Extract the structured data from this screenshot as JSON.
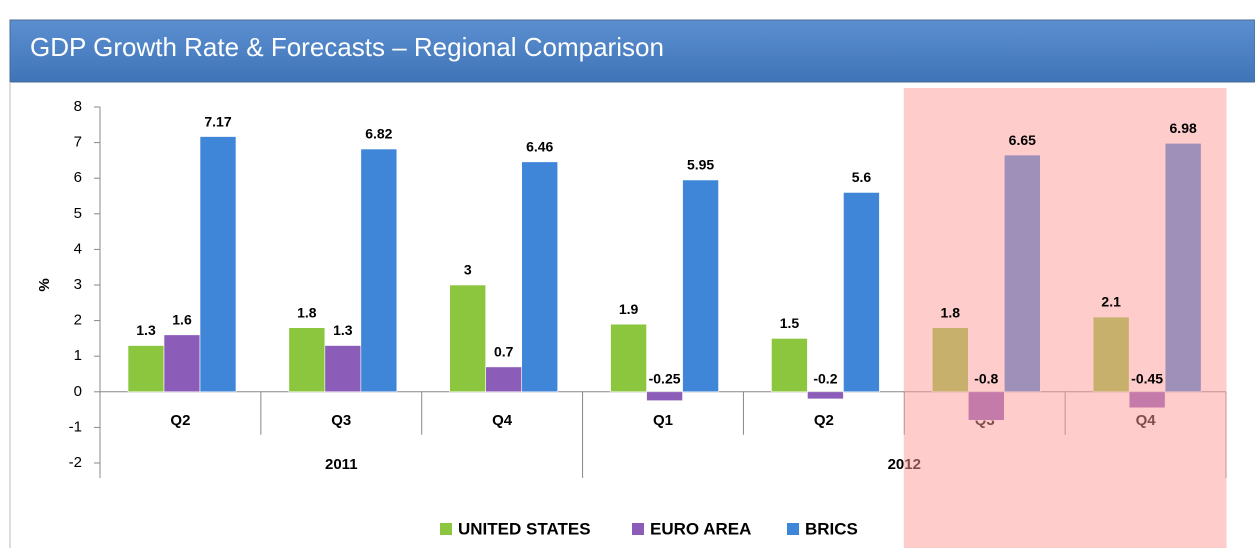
{
  "chart_data": {
    "type": "bar",
    "title": "GDP Growth Rate & Forecasts – Regional Comparison",
    "y_label": "%",
    "categories": [
      "Q2",
      "Q3",
      "Q4",
      "Q1",
      "Q2",
      "Q3",
      "Q4"
    ],
    "groups": [
      {
        "label": "2011",
        "span": 3
      },
      {
        "label": "2012",
        "span": 4
      }
    ],
    "series": [
      {
        "name": "UNITED STATES",
        "color": "#8cc63e",
        "values": [
          1.3,
          1.8,
          3,
          1.9,
          1.5,
          1.8,
          2.1
        ]
      },
      {
        "name": "EURO AREA",
        "color": "#8b5cb8",
        "values": [
          1.6,
          1.3,
          0.7,
          -0.25,
          -0.2,
          -0.8,
          -0.45
        ]
      },
      {
        "name": "BRICS",
        "color": "#3f86d8",
        "values": [
          7.17,
          6.82,
          6.46,
          5.95,
          5.6,
          6.65,
          6.98
        ]
      }
    ],
    "ylim": [
      -2,
      8
    ],
    "yticks": [
      -2,
      -1,
      0,
      1,
      2,
      3,
      4,
      5,
      6,
      7,
      8
    ],
    "highlight": {
      "color": "#ff9a9a",
      "categories": [
        5,
        6
      ]
    },
    "legend": "bottom"
  }
}
